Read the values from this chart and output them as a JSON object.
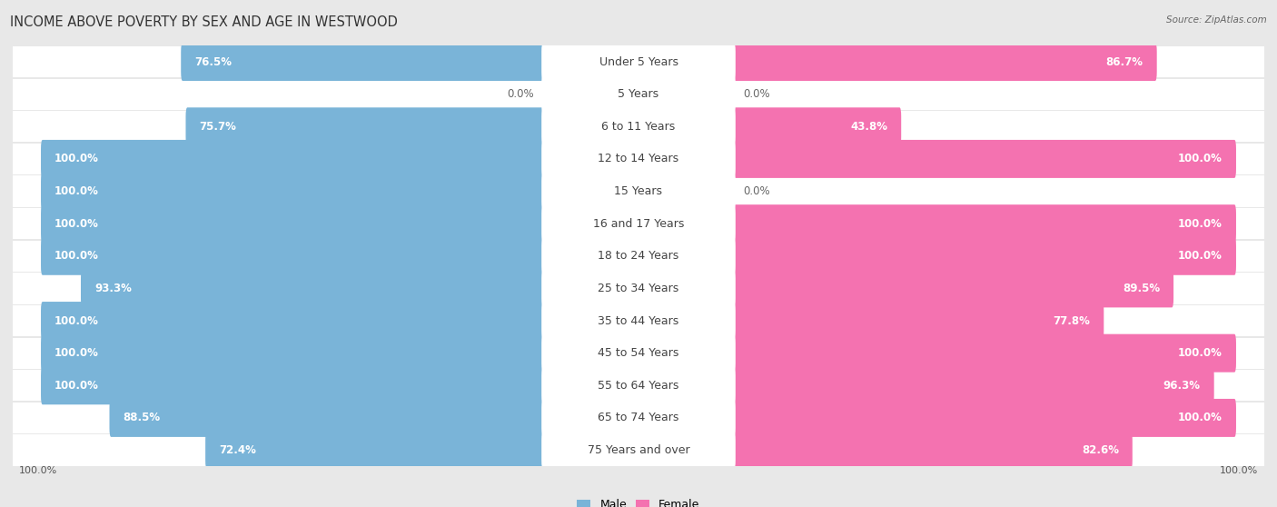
{
  "title": "INCOME ABOVE POVERTY BY SEX AND AGE IN WESTWOOD",
  "source": "Source: ZipAtlas.com",
  "categories": [
    "Under 5 Years",
    "5 Years",
    "6 to 11 Years",
    "12 to 14 Years",
    "15 Years",
    "16 and 17 Years",
    "18 to 24 Years",
    "25 to 34 Years",
    "35 to 44 Years",
    "45 to 54 Years",
    "55 to 64 Years",
    "65 to 74 Years",
    "75 Years and over"
  ],
  "male": [
    76.5,
    0.0,
    75.7,
    100.0,
    100.0,
    100.0,
    100.0,
    93.3,
    100.0,
    100.0,
    100.0,
    88.5,
    72.4
  ],
  "female": [
    86.7,
    0.0,
    43.8,
    100.0,
    0.0,
    100.0,
    100.0,
    89.5,
    77.8,
    100.0,
    96.3,
    100.0,
    82.6
  ],
  "male_color": "#7ab4d8",
  "female_color": "#f472b0",
  "male_light_color": "#c5def2",
  "female_light_color": "#f9b8d6",
  "male_label": "Male",
  "female_label": "Female",
  "bg_color": "#e8e8e8",
  "row_bg_color": "#ffffff",
  "title_fontsize": 10.5,
  "label_fontsize": 9,
  "value_fontsize": 8.5,
  "bar_height": 0.62,
  "x_max": 100
}
